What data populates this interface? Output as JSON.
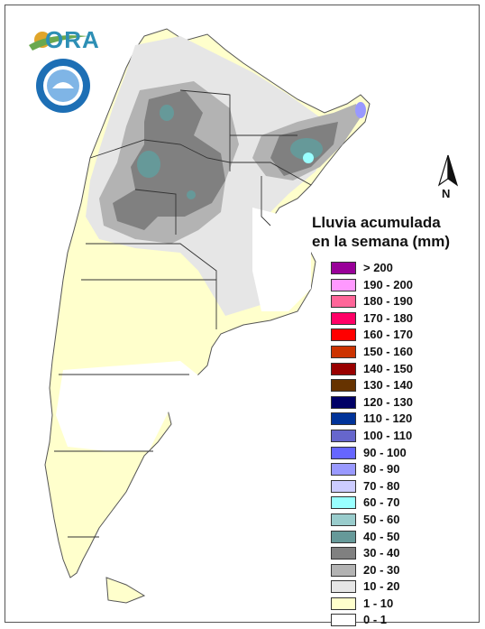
{
  "logo": {
    "text": "ORA",
    "sun_color": "#e0a52a",
    "swoosh_color": "#6aa84f",
    "text_color": "#2d8fb5"
  },
  "seal": {
    "ring_text": "SERVICIO METEOROLOGICO NACIONAL",
    "bottom_text": "ARGENTINA",
    "color": "#1d6fb5"
  },
  "north_arrow": {
    "label": "N",
    "icon": "north-arrow-icon"
  },
  "legend": {
    "title_line1": "Lluvia acumulada",
    "title_line2": "en la semana (mm)",
    "classes": [
      {
        "label": "> 200",
        "color": "#990099"
      },
      {
        "label": "190 - 200",
        "color": "#ff99ff"
      },
      {
        "label": "180 - 190",
        "color": "#ff6699"
      },
      {
        "label": "170 - 180",
        "color": "#ff0066"
      },
      {
        "label": "160 - 170",
        "color": "#ff0000"
      },
      {
        "label": "150 - 160",
        "color": "#cc3300"
      },
      {
        "label": "140 - 150",
        "color": "#990000"
      },
      {
        "label": "130 - 140",
        "color": "#663300"
      },
      {
        "label": "120 - 130",
        "color": "#000066"
      },
      {
        "label": "110 - 120",
        "color": "#003399"
      },
      {
        "label": "100 - 110",
        "color": "#6666cc"
      },
      {
        "label": "90 - 100",
        "color": "#6666ff"
      },
      {
        "label": "80 - 90",
        "color": "#9999ff"
      },
      {
        "label": "70 - 80",
        "color": "#ccccff"
      },
      {
        "label": "60 - 70",
        "color": "#99ffff"
      },
      {
        "label": "50 - 60",
        "color": "#99cccc"
      },
      {
        "label": "40 - 50",
        "color": "#669999"
      },
      {
        "label": "30 - 40",
        "color": "#808080"
      },
      {
        "label": "20 - 30",
        "color": "#b3b3b3"
      },
      {
        "label": "10 - 20",
        "color": "#e6e6e6"
      },
      {
        "label": "1 - 10",
        "color": "#ffffcc"
      },
      {
        "label": "0 - 1",
        "color": "#ffffff"
      }
    ]
  }
}
